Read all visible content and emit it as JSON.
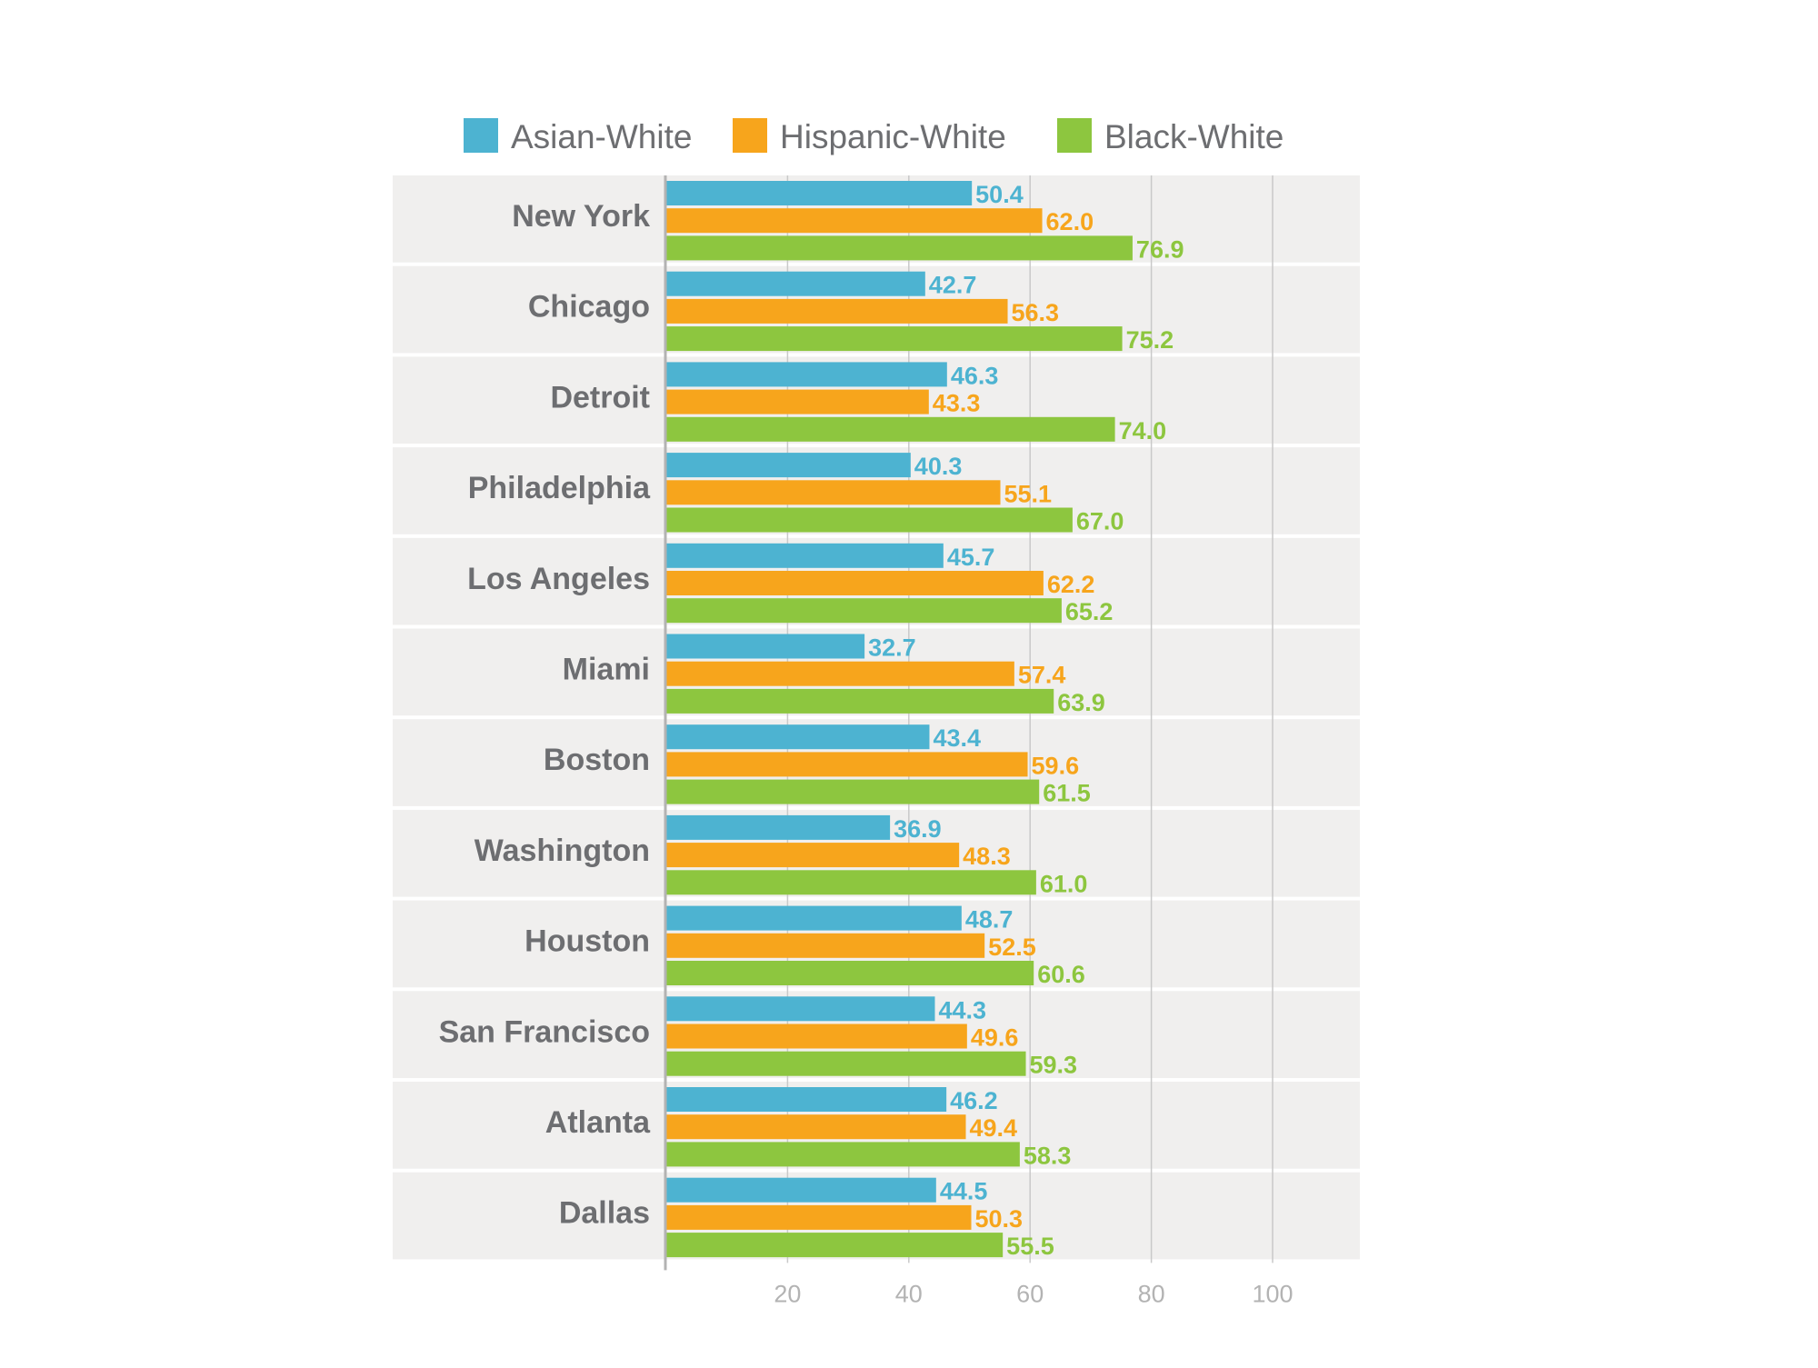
{
  "chart_data": {
    "type": "bar",
    "orientation": "horizontal",
    "title": "",
    "xlabel": "",
    "ylabel": "",
    "xlim": [
      0,
      110
    ],
    "x_ticks": [
      20,
      40,
      60,
      80,
      100
    ],
    "grid": true,
    "legend_position": "top",
    "categories": [
      "New York",
      "Chicago",
      "Detroit",
      "Philadelphia",
      "Los Angeles",
      "Miami",
      "Boston",
      "Washington",
      "Houston",
      "San Francisco",
      "Atlanta",
      "Dallas"
    ],
    "series": [
      {
        "name": "Asian-White",
        "color": "#4db3d1",
        "values": [
          50.4,
          42.7,
          46.3,
          40.3,
          45.7,
          32.7,
          43.4,
          36.9,
          48.7,
          44.3,
          46.2,
          44.5
        ]
      },
      {
        "name": "Hispanic-White",
        "color": "#f7a51c",
        "values": [
          62.0,
          56.3,
          43.3,
          55.1,
          62.2,
          57.4,
          59.6,
          48.3,
          52.5,
          49.6,
          49.4,
          50.3
        ]
      },
      {
        "name": "Black-White",
        "color": "#8dc63f",
        "values": [
          76.9,
          75.2,
          74.0,
          67.0,
          65.2,
          63.9,
          61.5,
          61.0,
          60.6,
          59.3,
          58.3,
          55.5
        ]
      }
    ]
  }
}
